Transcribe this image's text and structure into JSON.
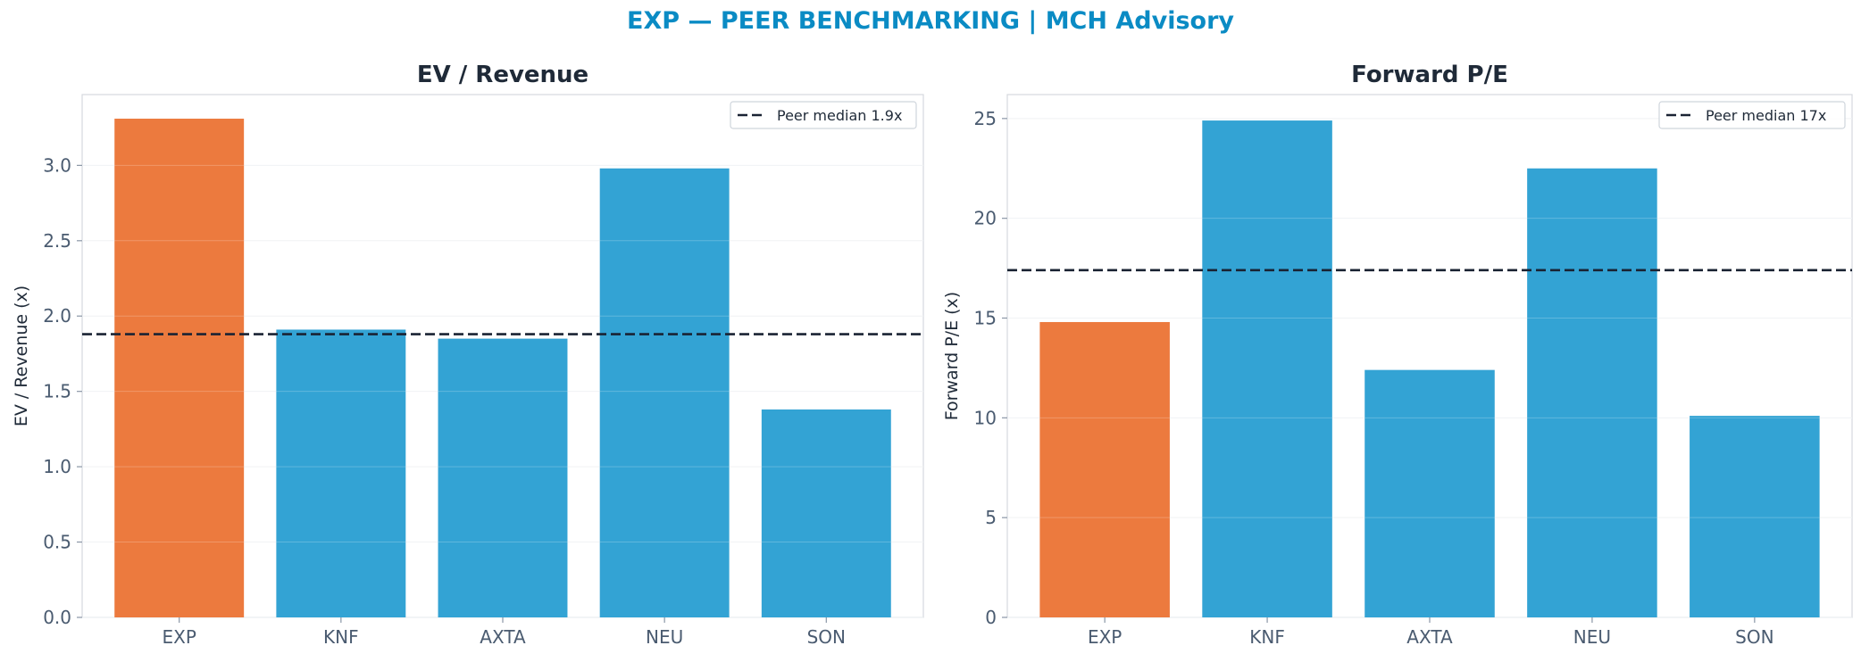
{
  "figure": {
    "suptitle": "EXP — PEER BENCHMARKING | MCH Advisory"
  },
  "colors": {
    "highlight": "#EC7A3E",
    "peer": "#33A3D4",
    "median_line": "#1A2333",
    "title": "#0A8BC4"
  },
  "chart_data": [
    {
      "type": "bar",
      "title": "EV / Revenue",
      "xlabel": "",
      "ylabel": "EV / Revenue (x)",
      "categories": [
        "EXP",
        "KNF",
        "AXTA",
        "NEU",
        "SON"
      ],
      "values": [
        3.31,
        1.91,
        1.85,
        2.98,
        1.38
      ],
      "highlight": "EXP",
      "ylim": [
        0,
        3.47
      ],
      "yticks": [
        0.0,
        0.5,
        1.0,
        1.5,
        2.0,
        2.5,
        3.0
      ],
      "ytick_labels": [
        "0.0",
        "0.5",
        "1.0",
        "1.5",
        "2.0",
        "2.5",
        "3.0"
      ],
      "reference_line": {
        "value": 1.88,
        "label": "Peer median 1.9x",
        "style": "dashed"
      },
      "legend": "top-right",
      "grid": "horizontal"
    },
    {
      "type": "bar",
      "title": "Forward P/E",
      "xlabel": "",
      "ylabel": "Forward P/E (x)",
      "categories": [
        "EXP",
        "KNF",
        "AXTA",
        "NEU",
        "SON"
      ],
      "values": [
        14.8,
        24.9,
        12.4,
        22.5,
        10.1
      ],
      "highlight": "EXP",
      "ylim": [
        0,
        26.2
      ],
      "yticks": [
        0,
        5,
        10,
        15,
        20,
        25
      ],
      "ytick_labels": [
        "0",
        "5",
        "10",
        "15",
        "20",
        "25"
      ],
      "reference_line": {
        "value": 17.4,
        "label": "Peer median 17x",
        "style": "dashed"
      },
      "legend": "top-right",
      "grid": "horizontal"
    }
  ]
}
